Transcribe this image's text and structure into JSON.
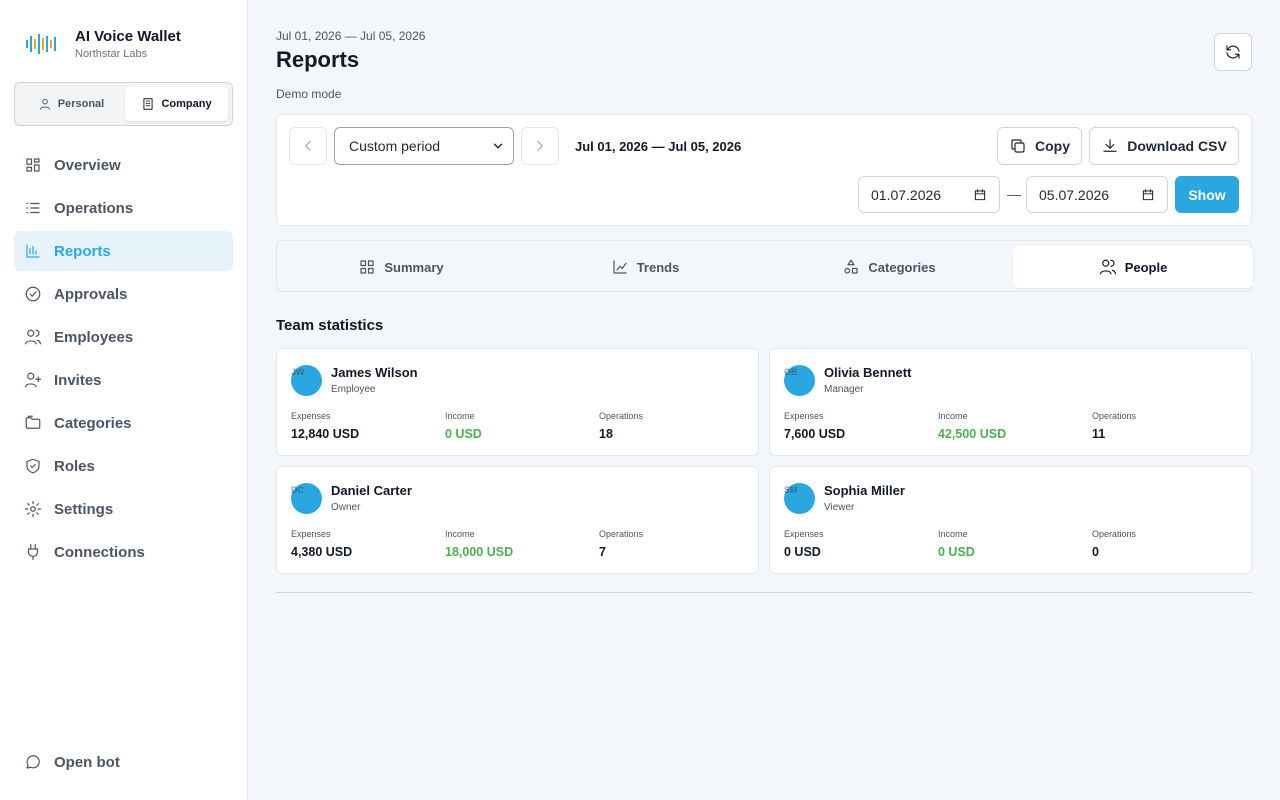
{
  "sidebar": {
    "app_name": "AI Voice Wallet",
    "org": "Northstar Labs",
    "modes": [
      "Personal",
      "Company"
    ],
    "nav": [
      "Overview",
      "Operations",
      "Reports",
      "Approvals",
      "Employees",
      "Invites",
      "Categories",
      "Roles",
      "Settings",
      "Connections"
    ],
    "footer": "Open bot"
  },
  "header": {
    "range": "Jul 01, 2026 — Jul 05, 2026",
    "title": "Reports",
    "mode": "Demo mode"
  },
  "toolbar": {
    "period": "Custom period",
    "range": "Jul 01, 2026 — Jul 05, 2026",
    "copy": "Copy",
    "download": "Download CSV",
    "from": "01.07.2026",
    "separator": "—",
    "to": "05.07.2026",
    "show": "Show"
  },
  "tabs": [
    "Summary",
    "Trends",
    "Categories",
    "People"
  ],
  "section_title": "Team statistics",
  "stat_labels": [
    "Expenses",
    "Income",
    "Operations"
  ],
  "people": [
    {
      "initials": "JW",
      "name": "James Wilson",
      "role": "Employee",
      "expenses": "12,840 USD",
      "income": "0 USD",
      "operations": 18
    },
    {
      "initials": "OB",
      "name": "Olivia Bennett",
      "role": "Manager",
      "expenses": "7,600 USD",
      "income": "42,500 USD",
      "operations": 11
    },
    {
      "initials": "DC",
      "name": "Daniel Carter",
      "role": "Owner",
      "expenses": "4,380 USD",
      "income": "18,000 USD",
      "operations": 7
    },
    {
      "initials": "SM",
      "name": "Sophia Miller",
      "role": "Viewer",
      "expenses": "0 USD",
      "income": "0 USD",
      "operations": 0
    }
  ]
}
